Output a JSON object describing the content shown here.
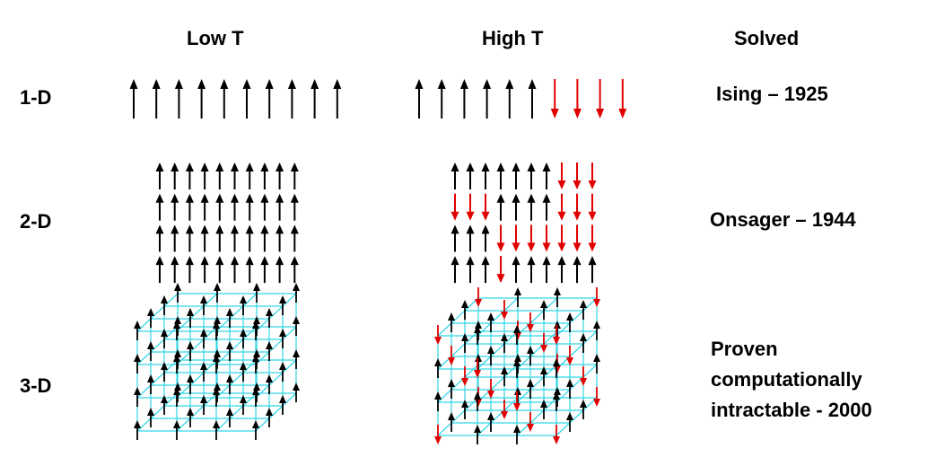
{
  "headers": {
    "low": "Low T",
    "high": "High T",
    "solved": "Solved"
  },
  "rows": [
    {
      "dim": "1-D",
      "solved": "Ising – 1925"
    },
    {
      "dim": "2-D",
      "solved": "Onsager – 1944"
    },
    {
      "dim": "3-D",
      "solved_lines": [
        "Proven",
        "computationally",
        "intractable - 2000"
      ]
    }
  ],
  "colors": {
    "spin_up": "#000000",
    "spin_down": "#e00000",
    "lattice": "#33d6e6"
  },
  "spins": {
    "one_d_low": "UUUUUUUUUU",
    "one_d_high": "UUUUUUDDDD",
    "two_d_low": [
      "UUUUUUUUUU",
      "UUUUUUUUUU",
      "UUUUUUUUUU",
      "UUUUUUUUUU"
    ],
    "two_d_high": [
      "UUUUUUUDDD",
      "DDDUUUUDDD",
      "UUUDDDDDDD",
      "UUUDUUUUUU"
    ]
  }
}
